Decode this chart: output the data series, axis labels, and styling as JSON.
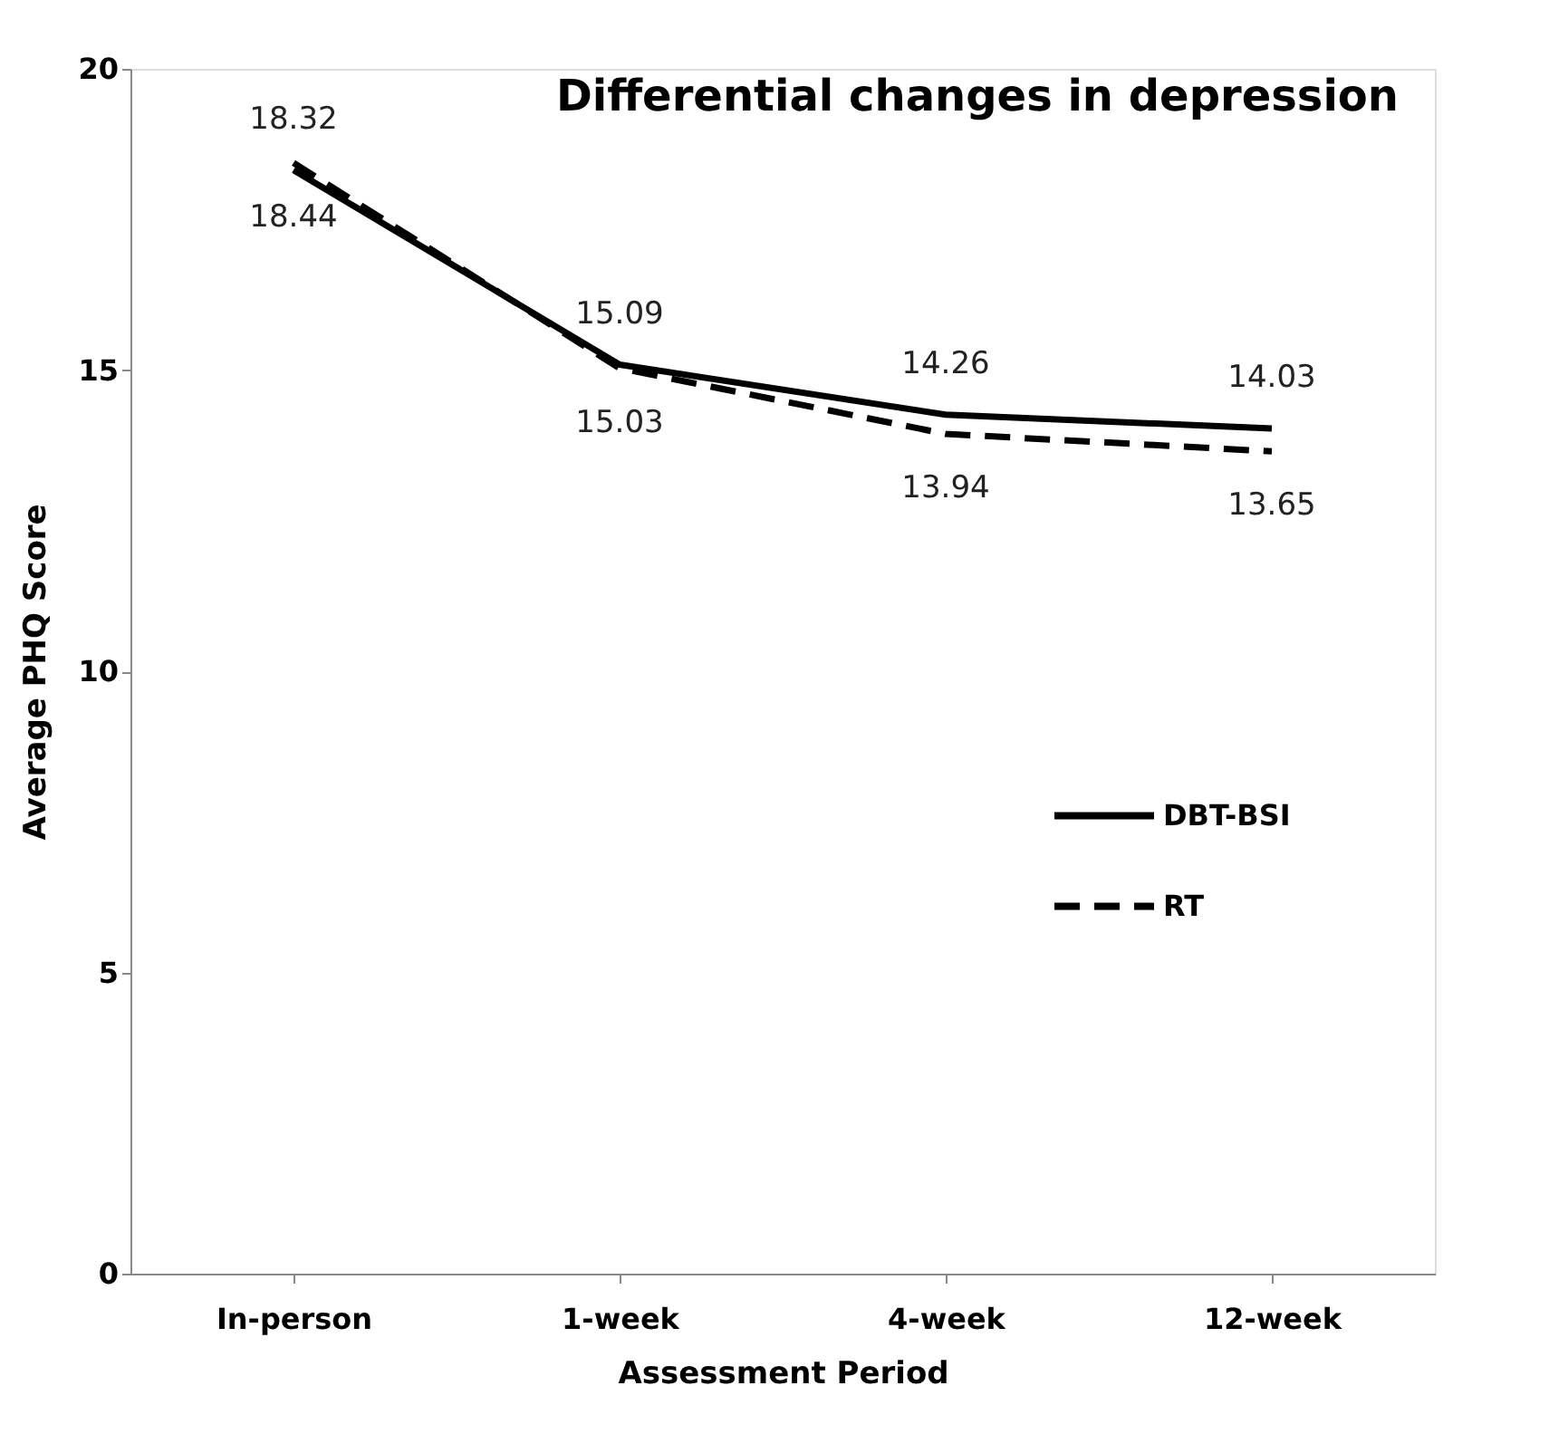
{
  "chart_data": {
    "type": "line",
    "title": "Differential changes in depression",
    "xlabel": "Assessment Period",
    "ylabel": "Average PHQ Score",
    "categories": [
      "In-person",
      "1-week",
      "4-week",
      "12-week"
    ],
    "series": [
      {
        "name": "DBT-BSI",
        "color": "#000000",
        "values": [
          18.32,
          15.09,
          14.26,
          14.03
        ],
        "line_style": "solid"
      },
      {
        "name": "RT",
        "color": "#000000",
        "values": [
          18.44,
          15.03,
          13.94,
          13.65
        ],
        "line_style": "dashed"
      }
    ],
    "ylim": [
      0,
      20
    ],
    "yticks": [
      0,
      5,
      10,
      15,
      20
    ],
    "grid": false,
    "legend": "right",
    "data_labels": true,
    "marker": "none"
  }
}
